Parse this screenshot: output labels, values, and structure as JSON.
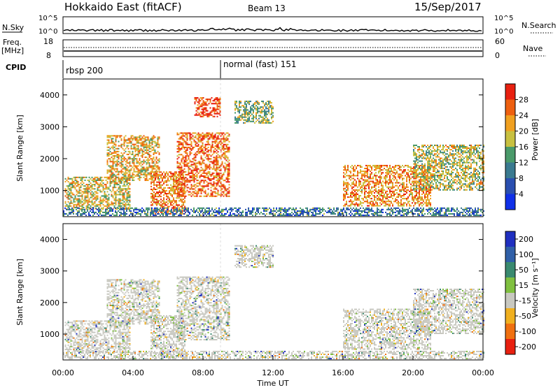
{
  "header": {
    "title": "Hokkaido East (fitACF)",
    "beam": "Beam 13",
    "date": "15/Sep/2017"
  },
  "top_panels": {
    "nsky_label": "N.Sky",
    "nsearch_label": "N.Search",
    "nsky_ticks": [
      "10^5",
      "10^0"
    ],
    "nsky_right_ticks": [
      "10^5",
      "10^0"
    ],
    "freq_label_line1": "Freq.",
    "freq_label_line2": "[MHz]",
    "freq_ticks": [
      "18",
      "8"
    ],
    "nave_label": "Nave",
    "nave_ticks": [
      "60",
      "0"
    ],
    "cpid_label": "CPID",
    "cpid_segments": [
      {
        "label": "rbsp 200",
        "start_hour": 0
      },
      {
        "label": "normal (fast) 151",
        "start_hour": 9
      }
    ]
  },
  "chart_data": [
    {
      "type": "heatmap",
      "quantity": "Power",
      "ylabel": "Slant Range [km]",
      "xlabel": "",
      "ylim": [
        180,
        4500
      ],
      "xlim_hours": [
        0,
        24
      ],
      "yticks": [
        1000,
        2000,
        3000,
        4000
      ],
      "colorbar": {
        "label": "Power [dB]",
        "ticks": [
          "4",
          "8",
          "12",
          "16",
          "20",
          "24",
          "28"
        ],
        "range": [
          0,
          32
        ],
        "colors": [
          "#1030e8",
          "#2a4fb0",
          "#3a7a90",
          "#4a9a6a",
          "#c8c040",
          "#f0a020",
          "#ee6010",
          "#e82010"
        ]
      },
      "regions": [
        {
          "t0": 0.1,
          "t1": 3.8,
          "r0": 400,
          "r1": 1400,
          "level": 0.6
        },
        {
          "t0": 2.5,
          "t1": 5.5,
          "r0": 1300,
          "r1": 2700,
          "level": 0.65
        },
        {
          "t0": 5.0,
          "t1": 7.0,
          "r0": 250,
          "r1": 1600,
          "level": 0.75
        },
        {
          "t0": 6.5,
          "t1": 9.5,
          "r0": 800,
          "r1": 2800,
          "level": 0.8
        },
        {
          "t0": 7.5,
          "t1": 9.0,
          "r0": 3300,
          "r1": 3900,
          "level": 0.9
        },
        {
          "t0": 9.8,
          "t1": 12.0,
          "r0": 3100,
          "r1": 3800,
          "level": 0.5
        },
        {
          "t0": 16.0,
          "t1": 21.0,
          "r0": 500,
          "r1": 1800,
          "level": 0.72
        },
        {
          "t0": 20.0,
          "t1": 24.0,
          "r0": 1000,
          "r1": 2400,
          "level": 0.55
        },
        {
          "t0": 0.0,
          "t1": 24.0,
          "r0": 200,
          "r1": 450,
          "level": 0.3
        }
      ]
    },
    {
      "type": "heatmap",
      "quantity": "Velocity",
      "ylabel": "Slant Range [km]",
      "xlabel": "Time UT",
      "ylim": [
        180,
        4500
      ],
      "xlim_hours": [
        0,
        24
      ],
      "yticks": [
        1000,
        2000,
        3000,
        4000
      ],
      "xticks": [
        "00:00",
        "04:00",
        "08:00",
        "12:00",
        "16:00",
        "20:00",
        "00:00"
      ],
      "colorbar": {
        "label": "Velocity [m s⁻¹]",
        "ticks": [
          "200",
          "100",
          "50",
          "15",
          "-15",
          "-50",
          "-100",
          "-200"
        ],
        "colors": [
          "#2030c0",
          "#3060a8",
          "#3a8a70",
          "#80c040",
          "#c8c8c0",
          "#f0b020",
          "#f07010",
          "#e82010"
        ]
      },
      "regions": [
        {
          "t0": 0.1,
          "t1": 3.8,
          "r0": 400,
          "r1": 1400,
          "level": 0.5
        },
        {
          "t0": 2.5,
          "t1": 5.5,
          "r0": 1300,
          "r1": 2700,
          "level": 0.5
        },
        {
          "t0": 5.0,
          "t1": 7.0,
          "r0": 250,
          "r1": 1600,
          "level": 0.5
        },
        {
          "t0": 6.5,
          "t1": 9.5,
          "r0": 800,
          "r1": 2800,
          "level": 0.5
        },
        {
          "t0": 9.8,
          "t1": 12.0,
          "r0": 3100,
          "r1": 3800,
          "level": 0.5
        },
        {
          "t0": 16.0,
          "t1": 21.0,
          "r0": 500,
          "r1": 1800,
          "level": 0.5
        },
        {
          "t0": 20.0,
          "t1": 24.0,
          "r0": 1000,
          "r1": 2400,
          "level": 0.5
        },
        {
          "t0": 0.0,
          "t1": 24.0,
          "r0": 200,
          "r1": 450,
          "level": 0.5
        }
      ]
    }
  ]
}
